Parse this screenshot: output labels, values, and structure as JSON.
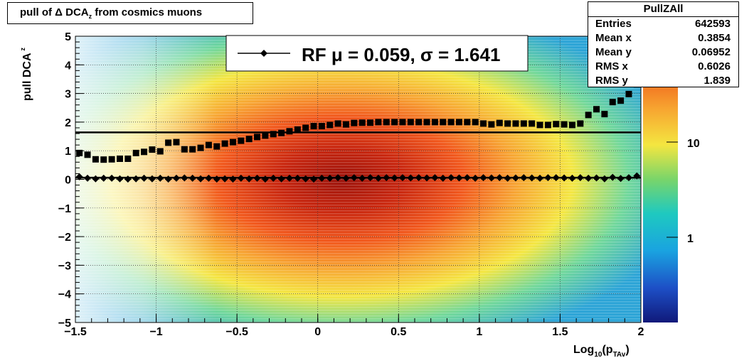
{
  "title": {
    "prefix": "pull of ",
    "delta": "Δ",
    "main": " DCA",
    "sub": "z",
    "suffix": " from cosmics muons"
  },
  "stats": {
    "title": "PullZAll",
    "rows": [
      {
        "label": "Entries",
        "value": "642593"
      },
      {
        "label": "Mean x",
        "value": "0.3854"
      },
      {
        "label": "Mean y",
        "value": "0.06952"
      },
      {
        "label": "RMS x",
        "value": "0.6026"
      },
      {
        "label": "RMS y",
        "value": "1.839"
      }
    ]
  },
  "legend": {
    "text": "RF μ =  0.059, σ =   1.641"
  },
  "axes": {
    "xlabel_main": "Log",
    "xlabel_sub1": "10",
    "xlabel_mid": "(p",
    "xlabel_sub2": "TAv",
    "xlabel_end": ")",
    "ylabel_main": "pull DCA",
    "ylabel_sub": "z",
    "x_ticks": [
      "−1.5",
      "−1",
      "−0.5",
      "0",
      "0.5",
      "1",
      "1.5",
      "2"
    ],
    "y_ticks": [
      "5",
      "4",
      "3",
      "2",
      "1",
      "0",
      "−1",
      "−2",
      "−3",
      "−4",
      "−5"
    ],
    "z_ticks": [
      "10",
      "1"
    ]
  },
  "chart_data": {
    "type": "heatmap",
    "xlim": [
      -1.5,
      2
    ],
    "ylim": [
      -5,
      5
    ],
    "zscale": "log",
    "colorbar_ticks": [
      10,
      1
    ],
    "grid": true,
    "legend_position": "top-center",
    "colors": {
      "low": "#1a2f9a",
      "mid": "#f5e640",
      "high": "#9c1008",
      "markers": "#000000"
    },
    "mean_series": {
      "x": [
        -1.475,
        -1.425,
        -1.375,
        -1.325,
        -1.275,
        -1.225,
        -1.175,
        -1.125,
        -1.075,
        -1.025,
        -0.975,
        -0.925,
        -0.875,
        -0.825,
        -0.775,
        -0.725,
        -0.675,
        -0.625,
        -0.575,
        -0.525,
        -0.475,
        -0.425,
        -0.375,
        -0.325,
        -0.275,
        -0.225,
        -0.175,
        -0.125,
        -0.075,
        -0.025,
        0.025,
        0.075,
        0.125,
        0.175,
        0.225,
        0.275,
        0.325,
        0.375,
        0.425,
        0.475,
        0.525,
        0.575,
        0.625,
        0.675,
        0.725,
        0.775,
        0.825,
        0.875,
        0.925,
        0.975,
        1.025,
        1.075,
        1.125,
        1.175,
        1.225,
        1.275,
        1.325,
        1.375,
        1.425,
        1.475,
        1.525,
        1.575,
        1.625,
        1.675,
        1.725,
        1.775,
        1.825,
        1.875,
        1.925,
        1.975
      ],
      "y": [
        0.09,
        0.04,
        0.02,
        0.04,
        0.04,
        0.02,
        0.01,
        0.02,
        0.04,
        0.02,
        0.04,
        0.01,
        0.04,
        0.05,
        0.04,
        0.02,
        0.04,
        0.01,
        0.02,
        0.01,
        0.04,
        0.02,
        0.04,
        0.01,
        0.04,
        0.02,
        0.04,
        0.04,
        0.02,
        0.01,
        0.04,
        0.04,
        0.06,
        0.04,
        0.06,
        0.04,
        0.06,
        0.04,
        0.06,
        0.05,
        0.06,
        0.05,
        0.06,
        0.05,
        0.06,
        0.04,
        0.06,
        0.05,
        0.06,
        0.04,
        0.06,
        0.05,
        0.06,
        0.04,
        0.05,
        0.06,
        0.05,
        0.04,
        0.06,
        0.06,
        0.05,
        0.04,
        0.06,
        0.04,
        0.05,
        0.02,
        0.07,
        0.03,
        0.06,
        0.12
      ]
    },
    "sigma_series": {
      "x": [
        -1.475,
        -1.425,
        -1.375,
        -1.325,
        -1.275,
        -1.225,
        -1.175,
        -1.125,
        -1.075,
        -1.025,
        -0.975,
        -0.925,
        -0.875,
        -0.825,
        -0.775,
        -0.725,
        -0.675,
        -0.625,
        -0.575,
        -0.525,
        -0.475,
        -0.425,
        -0.375,
        -0.325,
        -0.275,
        -0.225,
        -0.175,
        -0.125,
        -0.075,
        -0.025,
        0.025,
        0.075,
        0.125,
        0.175,
        0.225,
        0.275,
        0.325,
        0.375,
        0.425,
        0.475,
        0.525,
        0.575,
        0.625,
        0.675,
        0.725,
        0.775,
        0.825,
        0.875,
        0.925,
        0.975,
        1.025,
        1.075,
        1.125,
        1.175,
        1.225,
        1.275,
        1.325,
        1.375,
        1.425,
        1.475,
        1.525,
        1.575,
        1.625,
        1.675,
        1.725,
        1.775,
        1.825,
        1.875,
        1.925,
        1.975
      ],
      "y": [
        0.92,
        0.86,
        0.7,
        0.69,
        0.7,
        0.72,
        0.72,
        0.92,
        0.96,
        1.04,
        0.98,
        1.28,
        1.3,
        1.05,
        1.05,
        1.1,
        1.2,
        1.15,
        1.25,
        1.3,
        1.35,
        1.41,
        1.48,
        1.53,
        1.58,
        1.62,
        1.68,
        1.74,
        1.8,
        1.86,
        1.86,
        1.9,
        1.95,
        1.92,
        1.97,
        1.98,
        1.98,
        2.0,
        2.0,
        2.0,
        2.0,
        2.0,
        2.0,
        2.0,
        2.0,
        2.0,
        2.0,
        2.0,
        2.0,
        2.0,
        1.95,
        1.92,
        1.97,
        1.95,
        1.95,
        1.95,
        1.95,
        1.9,
        1.9,
        1.93,
        1.92,
        1.9,
        1.95,
        2.25,
        2.45,
        2.28,
        2.7,
        2.75,
        2.98,
        3.32
      ]
    },
    "fit_lines": [
      {
        "y": 0.059
      },
      {
        "y": 1.641
      }
    ]
  }
}
